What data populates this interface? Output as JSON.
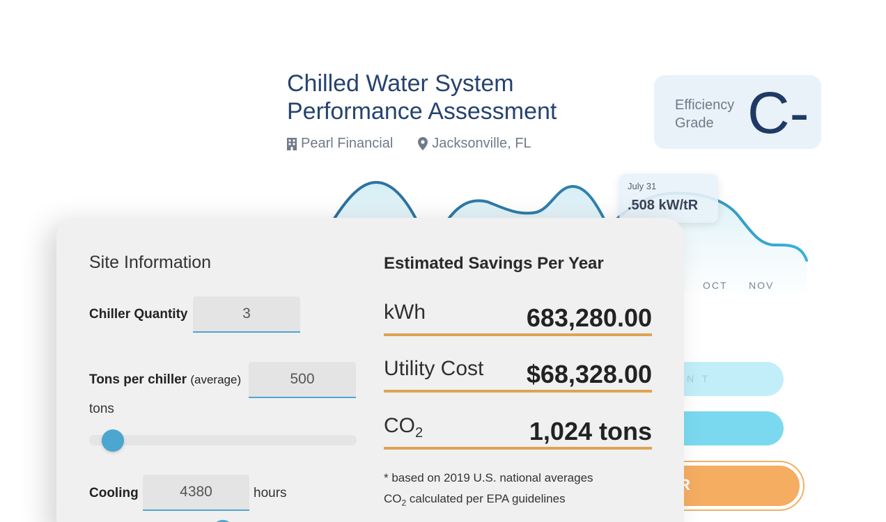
{
  "header": {
    "title": "Chilled Water System Performance Assessment",
    "company": "Pearl Financial",
    "location": "Jacksonville, FL",
    "building_icon": "building-icon",
    "location_icon": "map-pin-icon"
  },
  "grade": {
    "label": "Efficiency Grade",
    "value": "C-"
  },
  "chart_tooltip": {
    "date": "July 31",
    "value": ".508 kW/tR"
  },
  "chart_months": [
    "OCT",
    "NOV"
  ],
  "background_buttons": {
    "pill1_text": "N T",
    "pill3_text": "R"
  },
  "site_info": {
    "title": "Site Information",
    "chiller_quantity_label": "Chiller Quantity",
    "chiller_quantity_value": "3",
    "tons_label": "Tons per chiller",
    "tons_sub": "(average)",
    "tons_value": "500",
    "tons_unit": "tons",
    "tons_slider_fraction": 0.06,
    "cooling_label": "Cooling",
    "cooling_value": "4380",
    "cooling_unit": "hours"
  },
  "savings": {
    "title": "Estimated Savings Per Year",
    "kwh_label": "kWh",
    "kwh_value": "683,280.00",
    "cost_label": "Utility Cost",
    "cost_value": "$68,328.00",
    "co2_label": "CO",
    "co2_sub": "2",
    "co2_value": "1,024 tons",
    "footnote1": "* based on 2019 U.S. national averages",
    "footnote2_prefix": "CO",
    "footnote2_sub": "2",
    "footnote2_suffix": " calculated per EPA guidelines"
  },
  "colors": {
    "title_blue": "#25436e",
    "accent_blue": "#4ba6d0",
    "underline_orange": "#e0a353",
    "panel_bg": "#f0f0f0"
  }
}
